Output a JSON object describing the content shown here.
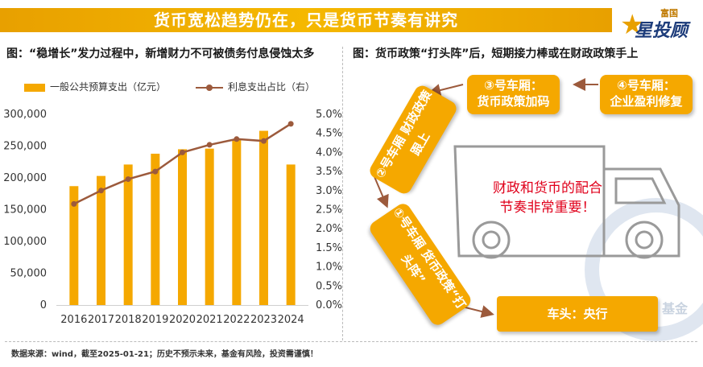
{
  "header": {
    "title": "货币宽松趋势仍在，只是货币节奏有讲究"
  },
  "logo": {
    "top": "富国",
    "main": "星投顾"
  },
  "left_panel": {
    "subtitle": "图：“稳增长”发力过程中，新增财力不可被债务付息侵蚀太多"
  },
  "right_panel": {
    "subtitle": "图：货币政策“打头阵”后，短期接力棒或在财政政策手上",
    "car3": {
      "line1": "③号车厢：",
      "line2": "货币政策加码"
    },
    "car4": {
      "line1": "④号车厢：",
      "line2": "企业盈利修复"
    },
    "car2": {
      "line1": "②号车厢",
      "line2": "财政政策跟上"
    },
    "car1": {
      "line1": "①号车厢",
      "line2": "货币政策“打头阵”"
    },
    "head": "车头：央行",
    "truck_text": {
      "line1": "财政和货币的配合",
      "line2": "节奏非常重要！"
    },
    "watermark": "基金"
  },
  "footer": {
    "text": "数据来源：wind，截至2025-01-21；历史不预示未来，基金有风险，投资需谨慎！"
  },
  "colors": {
    "bar": "#f5a800",
    "line": "#9c5a3c",
    "accent": "#f5a800",
    "emphasis": "#e0001b"
  },
  "chart_data": {
    "type": "bar",
    "categories": [
      "2016",
      "2017",
      "2018",
      "2019",
      "2020",
      "2021",
      "2022",
      "2023",
      "2024"
    ],
    "series": [
      {
        "name": "一般公共预算支出（亿元）",
        "type": "bar",
        "axis": "left",
        "values": [
          187000,
          203000,
          221000,
          238000,
          245000,
          246000,
          260000,
          274000,
          221000
        ]
      },
      {
        "name": "利息支出占比（右）",
        "type": "line",
        "axis": "right",
        "values": [
          2.65,
          3.0,
          3.3,
          3.5,
          4.0,
          4.2,
          4.35,
          4.3,
          4.75
        ]
      }
    ],
    "left_axis": {
      "ylim": [
        0,
        300000
      ],
      "ticks": [
        "0",
        "50,000",
        "100,000",
        "150,000",
        "200,000",
        "250,000",
        "300,000"
      ]
    },
    "right_axis": {
      "ylim": [
        0,
        5
      ],
      "ticks": [
        "0.0%",
        "0.5%",
        "1.0%",
        "1.5%",
        "2.0%",
        "2.5%",
        "3.0%",
        "3.5%",
        "4.0%",
        "4.5%",
        "5.0%"
      ]
    },
    "legend_position": "top",
    "grid": false
  }
}
